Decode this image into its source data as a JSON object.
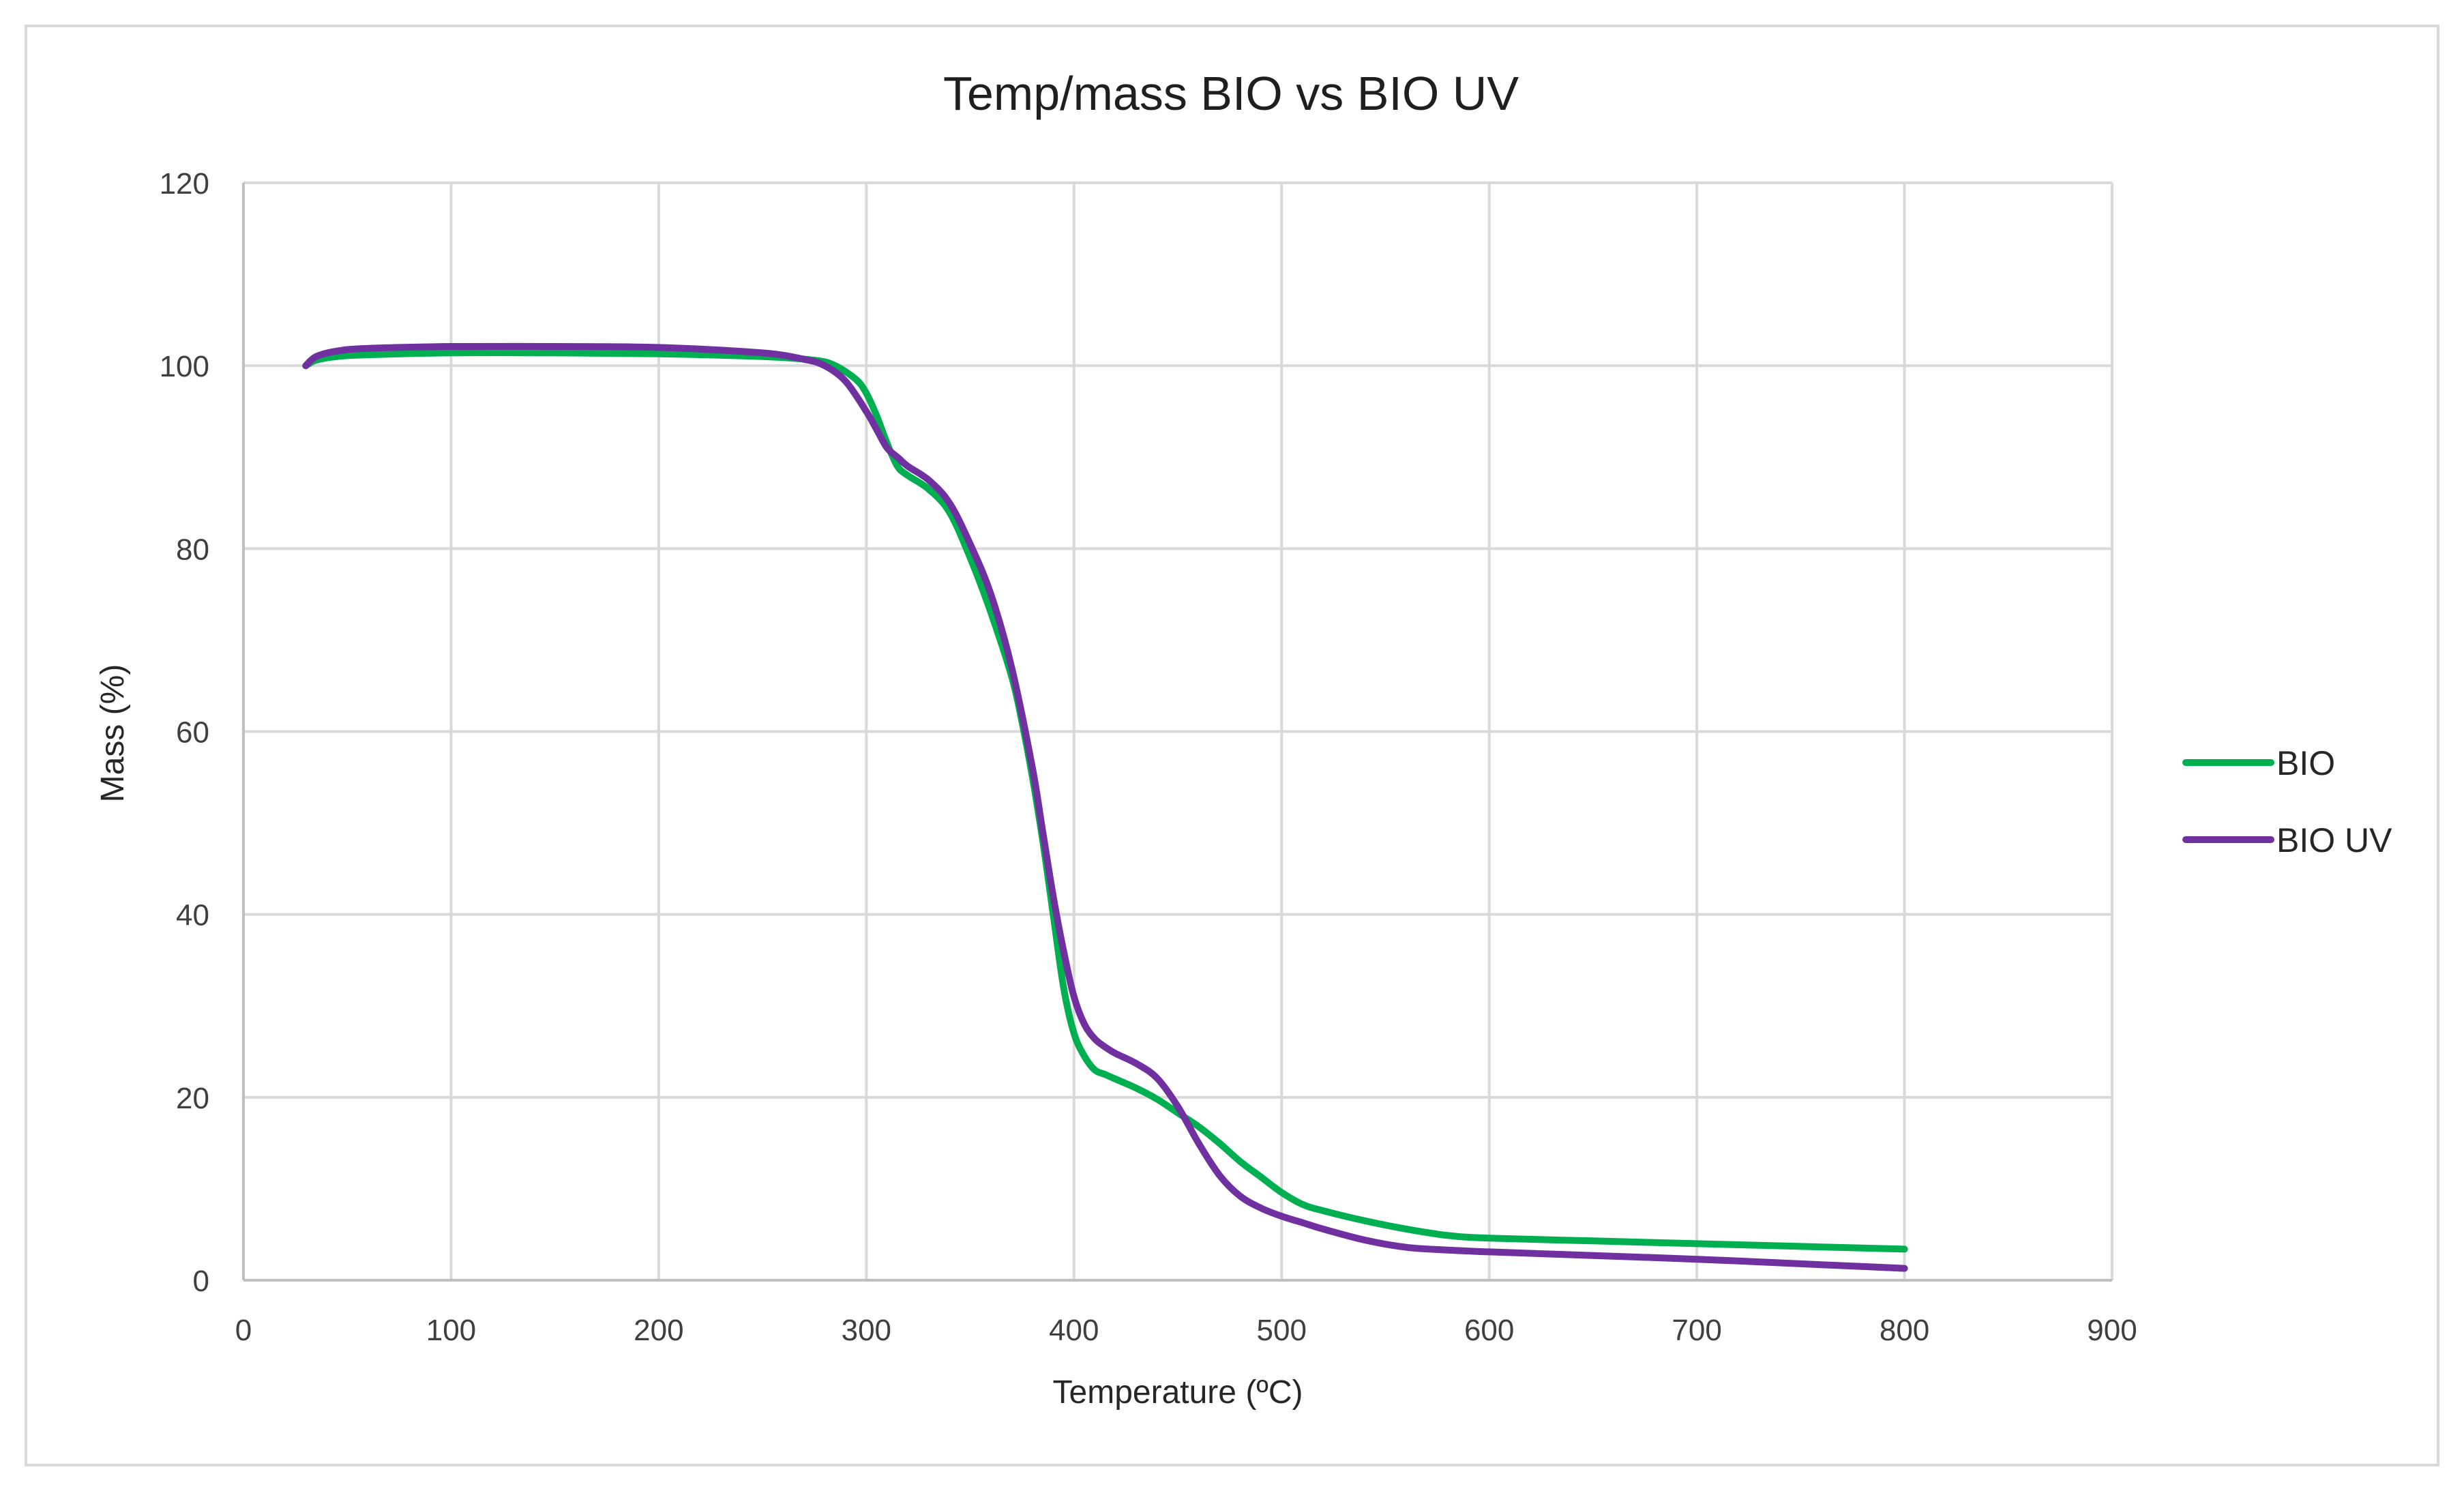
{
  "chart_data": {
    "type": "line",
    "title": "Temp/mass BIO vs BIO UV",
    "xlabel": "Temperature (ºC)",
    "ylabel": "Mass (%)",
    "xlim": [
      0,
      900
    ],
    "ylim": [
      0,
      120
    ],
    "xticks": [
      0,
      100,
      200,
      300,
      400,
      500,
      600,
      700,
      800,
      900
    ],
    "yticks": [
      0,
      20,
      40,
      60,
      80,
      100,
      120
    ],
    "grid": true,
    "legend_position": "right",
    "series": [
      {
        "name": "BIO",
        "color": "#00b050",
        "x": [
          30,
          35,
          45,
          60,
          100,
          150,
          200,
          250,
          275,
          285,
          295,
          300,
          305,
          310,
          315,
          320,
          330,
          340,
          350,
          360,
          370,
          375,
          380,
          385,
          390,
          395,
          400,
          405,
          410,
          415,
          420,
          430,
          440,
          450,
          460,
          470,
          480,
          490,
          500,
          510,
          520,
          540,
          560,
          580,
          600,
          650,
          700,
          750,
          800
        ],
        "y": [
          100,
          100.6,
          101,
          101.2,
          101.4,
          101.4,
          101.3,
          101,
          100.6,
          100,
          98.5,
          97,
          94.5,
          91.5,
          89,
          88,
          86.5,
          84,
          79,
          73,
          66,
          61,
          55,
          48,
          40,
          32,
          27,
          24.5,
          23,
          22.5,
          22,
          21,
          19.8,
          18.3,
          16.8,
          15,
          13,
          11.3,
          9.6,
          8.3,
          7.6,
          6.5,
          5.6,
          4.9,
          4.6,
          4.3,
          4.0,
          3.7,
          3.4
        ]
      },
      {
        "name": "BIO UV",
        "color": "#7030a0",
        "x": [
          30,
          35,
          45,
          60,
          100,
          150,
          200,
          250,
          270,
          280,
          290,
          300,
          305,
          310,
          315,
          320,
          330,
          340,
          350,
          360,
          370,
          380,
          385,
          390,
          395,
          400,
          405,
          410,
          415,
          420,
          430,
          440,
          450,
          460,
          470,
          480,
          490,
          500,
          510,
          520,
          540,
          560,
          580,
          600,
          650,
          700,
          750,
          780,
          800
        ],
        "y": [
          100,
          101,
          101.6,
          101.9,
          102.1,
          102.1,
          102,
          101.4,
          100.7,
          100,
          98.3,
          95,
          93,
          91,
          90,
          89,
          87.5,
          85,
          80.5,
          75,
          67,
          56,
          49,
          42,
          36,
          31,
          28,
          26.4,
          25.5,
          24.8,
          23.7,
          22.1,
          19,
          15,
          11.5,
          9.2,
          7.9,
          7,
          6.3,
          5.6,
          4.4,
          3.6,
          3.3,
          3.1,
          2.7,
          2.3,
          1.8,
          1.5,
          1.3
        ]
      }
    ]
  }
}
